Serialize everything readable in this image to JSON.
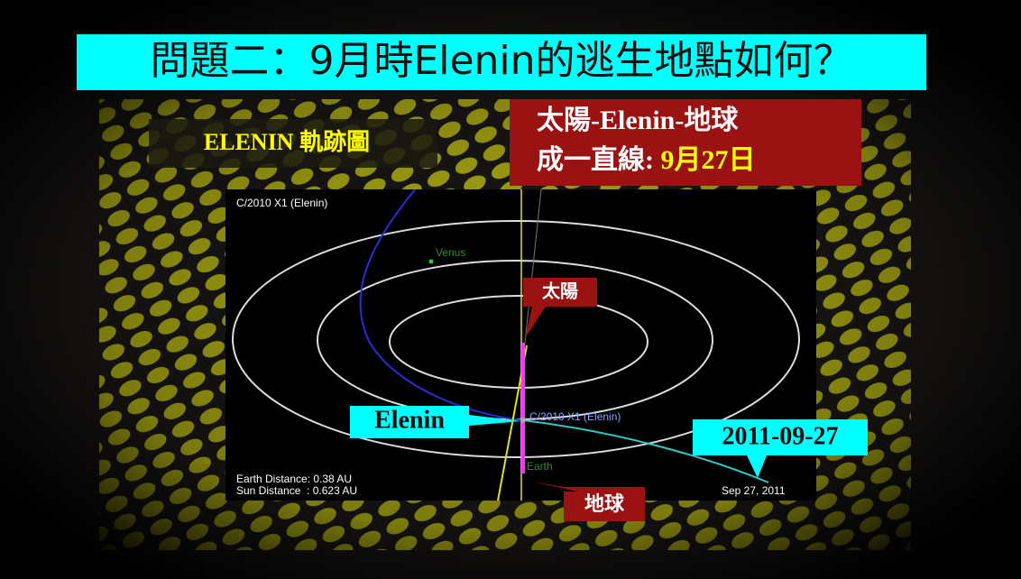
{
  "title": "問題二：9月時Elenin的逃生地點如何？",
  "chart_label": "ELENIN 軌跡圖",
  "alignment_box": {
    "line1": "太陽-Elenin-地球",
    "line2_prefix": "成一直線:",
    "line2_date": "9月27日"
  },
  "orbit_view": {
    "object_name": "C/2010 X1 (Elenin)",
    "venus_label": "Venus",
    "comet_label": "C/2010 X1 (Elenin)",
    "earth_label": "Earth",
    "earth_distance": "Earth Distance: 0.38 AU",
    "sun_distance": "Sun Distance  : 0.623 AU",
    "date": "Sep 27, 2011"
  },
  "callouts": {
    "sun": "太陽",
    "elenin": "Elenin",
    "earth": "地球",
    "date": "2011-09-27"
  }
}
